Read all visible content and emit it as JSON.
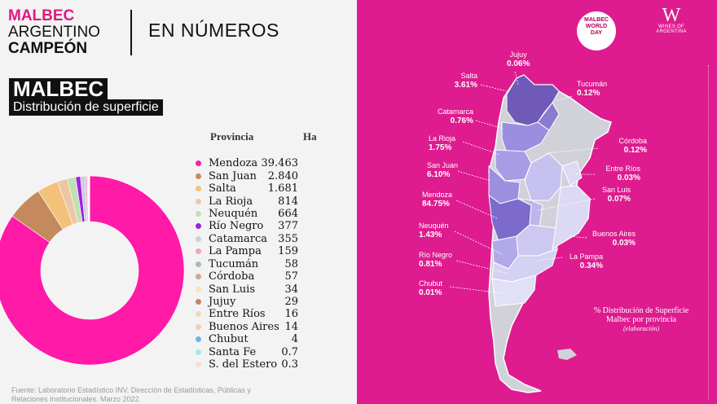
{
  "header": {
    "line1": "MALBEC",
    "line2": "ARGENTINO",
    "line3": "CAMPEÓN",
    "section": "EN NÚMEROS"
  },
  "left": {
    "title": "MALBEC",
    "subtitle": "Distribución de superficie",
    "col_province": "Provincia",
    "col_ha": "Ha",
    "source": "Fuente: Laboratorio Estadístico INV. Dirección de Estadísticas, Públicas y Relaciones Institucionales. Marzo 2022."
  },
  "colors": {
    "pink": "#de1b8f",
    "accent": "#e0187f"
  },
  "chart_data": [
    {
      "type": "pie",
      "categories": [
        "Mendoza",
        "San Juan",
        "Salta",
        "La Rioja",
        "Neuquén",
        "Río Negro",
        "Catamarca",
        "La Pampa",
        "Tucumán",
        "Córdoba",
        "San Luis",
        "Jujuy",
        "Entre Ríos",
        "Buenos Aires",
        "Chubut",
        "Santa Fe",
        "S. del Estero"
      ],
      "labels": [
        "39.463",
        "2.840",
        "1.681",
        "814",
        "664",
        "377",
        "355",
        "159",
        "58",
        "57",
        "34",
        "29",
        "16",
        "14",
        "4",
        "0.7",
        "0.3"
      ],
      "values": [
        39463,
        2840,
        1681,
        814,
        664,
        377,
        355,
        159,
        58,
        57,
        34,
        29,
        16,
        14,
        4,
        0.7,
        0.3
      ],
      "colors": [
        "#ff1aa8",
        "#c48a5e",
        "#f2c27a",
        "#ecc7a6",
        "#bfe0b3",
        "#a01fe3",
        "#c9d1d8",
        "#f0a3c5",
        "#a7b8c3",
        "#d1a891",
        "#f7e3bd",
        "#c68268",
        "#f4dab2",
        "#f3cfb2",
        "#6fb3f0",
        "#a9e8e4",
        "#f3e1d3"
      ]
    },
    {
      "type": "map",
      "title": "% Distribución de Superficie Malbec por provincia",
      "note": "(elaboración)",
      "regions": [
        {
          "name": "Jujuy",
          "value": "0.06%"
        },
        {
          "name": "Salta",
          "value": "3.61%"
        },
        {
          "name": "Tucumán",
          "value": "0.12%"
        },
        {
          "name": "Catamarca",
          "value": "0.76%"
        },
        {
          "name": "La Rioja",
          "value": "1.75%"
        },
        {
          "name": "Córdoba",
          "value": "0.12%"
        },
        {
          "name": "San Juan",
          "value": "6.10%"
        },
        {
          "name": "Entre Ríos",
          "value": "0.03%"
        },
        {
          "name": "San Luis",
          "value": "0.07%"
        },
        {
          "name": "Mendoza",
          "value": "84.75%"
        },
        {
          "name": "Buenos Aires",
          "value": "0.03%"
        },
        {
          "name": "Neuquén",
          "value": "1.43%"
        },
        {
          "name": "La Pampa",
          "value": "0.34%"
        },
        {
          "name": "Río Negro",
          "value": "0.81%"
        },
        {
          "name": "Chubut",
          "value": "0.01%"
        }
      ]
    }
  ],
  "logos": {
    "event_badge": "MALBEC WORLD DAY",
    "brand_mark": "W",
    "brand_name": "WINES OF ARGENTINA"
  }
}
